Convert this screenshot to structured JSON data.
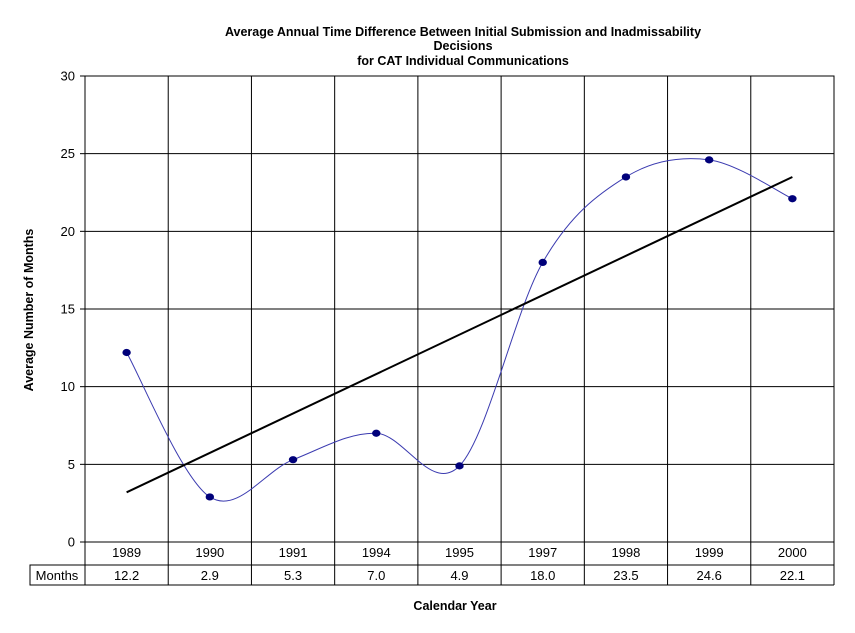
{
  "chart_data": {
    "type": "line",
    "title": [
      "Average Annual Time Difference Between Initial Submission and Inadmissability",
      "Decisions",
      "for CAT Individual Communications"
    ],
    "xlabel": "Calendar Year",
    "ylabel": "Average Number of Months",
    "ylim": [
      0,
      30
    ],
    "yticks": [
      "0",
      "5",
      "10",
      "15",
      "20",
      "25",
      "30"
    ],
    "categories": [
      "1989",
      "1990",
      "1991",
      "1994",
      "1995",
      "1997",
      "1998",
      "1999",
      "2000"
    ],
    "series": [
      {
        "name": "Months",
        "values": [
          12.2,
          2.9,
          5.3,
          7.0,
          4.9,
          18.0,
          23.5,
          24.6,
          22.1
        ],
        "labels": [
          "12.2",
          "2.9",
          "5.3",
          "7.0",
          "4.9",
          "18.0",
          "23.5",
          "24.6",
          "22.1"
        ],
        "line_color": "#3b3bb0",
        "marker_color": "#00007a"
      }
    ],
    "trendline": {
      "type": "linear",
      "start": 3.2,
      "end": 23.5,
      "color": "#000000"
    },
    "grid": true,
    "legend": "none",
    "data_table": true
  }
}
